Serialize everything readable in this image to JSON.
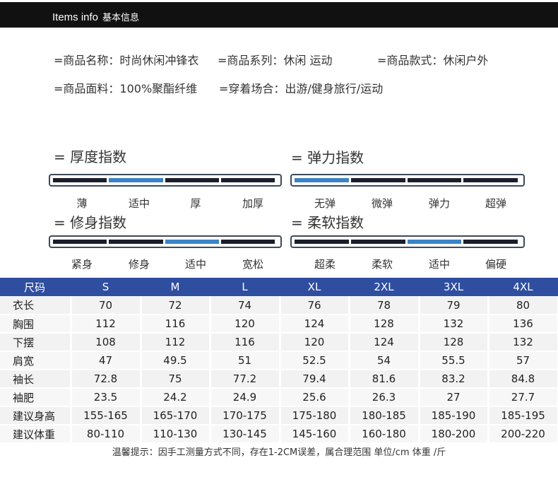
{
  "header": {
    "title_en": "Items info",
    "title_zh": "基本信息"
  },
  "info": {
    "name": "=商品名称：时尚休闲冲锋衣",
    "series": "=商品系列：休闲 运动",
    "style": "=商品款式：休闲户外",
    "fabric": "=商品面料：100%聚酯纤维",
    "occasion": "=穿着场合：出游/健身旅行/运动"
  },
  "indices": {
    "thickness": {
      "title": "= 厚度指数",
      "labels": [
        "薄",
        "适中",
        "厚",
        "加厚"
      ],
      "active_index": 1
    },
    "elasticity": {
      "title": "= 弹力指数",
      "labels": [
        "无弹",
        "微弹",
        "弹力",
        "超弹"
      ],
      "active_index": 0
    },
    "fit": {
      "title": "= 修身指数",
      "labels": [
        "紧身",
        "修身",
        "适中",
        "宽松"
      ],
      "active_index": 2
    },
    "softness": {
      "title": "= 柔软指数",
      "labels": [
        "超柔",
        "柔软",
        "适中",
        "偏硬"
      ],
      "active_index": 2
    }
  },
  "size_table": {
    "headers": [
      "尺码",
      "S",
      "M",
      "L",
      "XL",
      "2XL",
      "3XL",
      "4XL"
    ],
    "rows": [
      [
        "衣长",
        "70",
        "72",
        "74",
        "76",
        "78",
        "79",
        "80"
      ],
      [
        "胸围",
        "112",
        "116",
        "120",
        "124",
        "128",
        "132",
        "136"
      ],
      [
        "下摆",
        "108",
        "112",
        "116",
        "120",
        "124",
        "128",
        "132"
      ],
      [
        "肩宽",
        "47",
        "49.5",
        "51",
        "52.5",
        "54",
        "55.5",
        "57"
      ],
      [
        "袖长",
        "72.8",
        "75",
        "77.2",
        "79.4",
        "81.6",
        "83.2",
        "84.8"
      ],
      [
        "袖肥",
        "23.5",
        "24.2",
        "24.9",
        "25.6",
        "26.3",
        "27",
        "27.7"
      ],
      [
        "建议身高",
        "155-165",
        "165-170",
        "170-175",
        "175-180",
        "180-185",
        "185-190",
        "185-195"
      ],
      [
        "建议体重",
        "80-110",
        "110-130",
        "130-145",
        "145-160",
        "160-180",
        "180-200",
        "200-220"
      ]
    ]
  },
  "note": "温馨提示：因手工测量方式不同，存在1-2CM误差，属合理范围 单位/cm 体重 /斤",
  "colors": {
    "header_bg": "#111111",
    "table_header": "#2f4ea0",
    "active_segment": "#3a84c6",
    "segment": "#1a1f2b"
  }
}
